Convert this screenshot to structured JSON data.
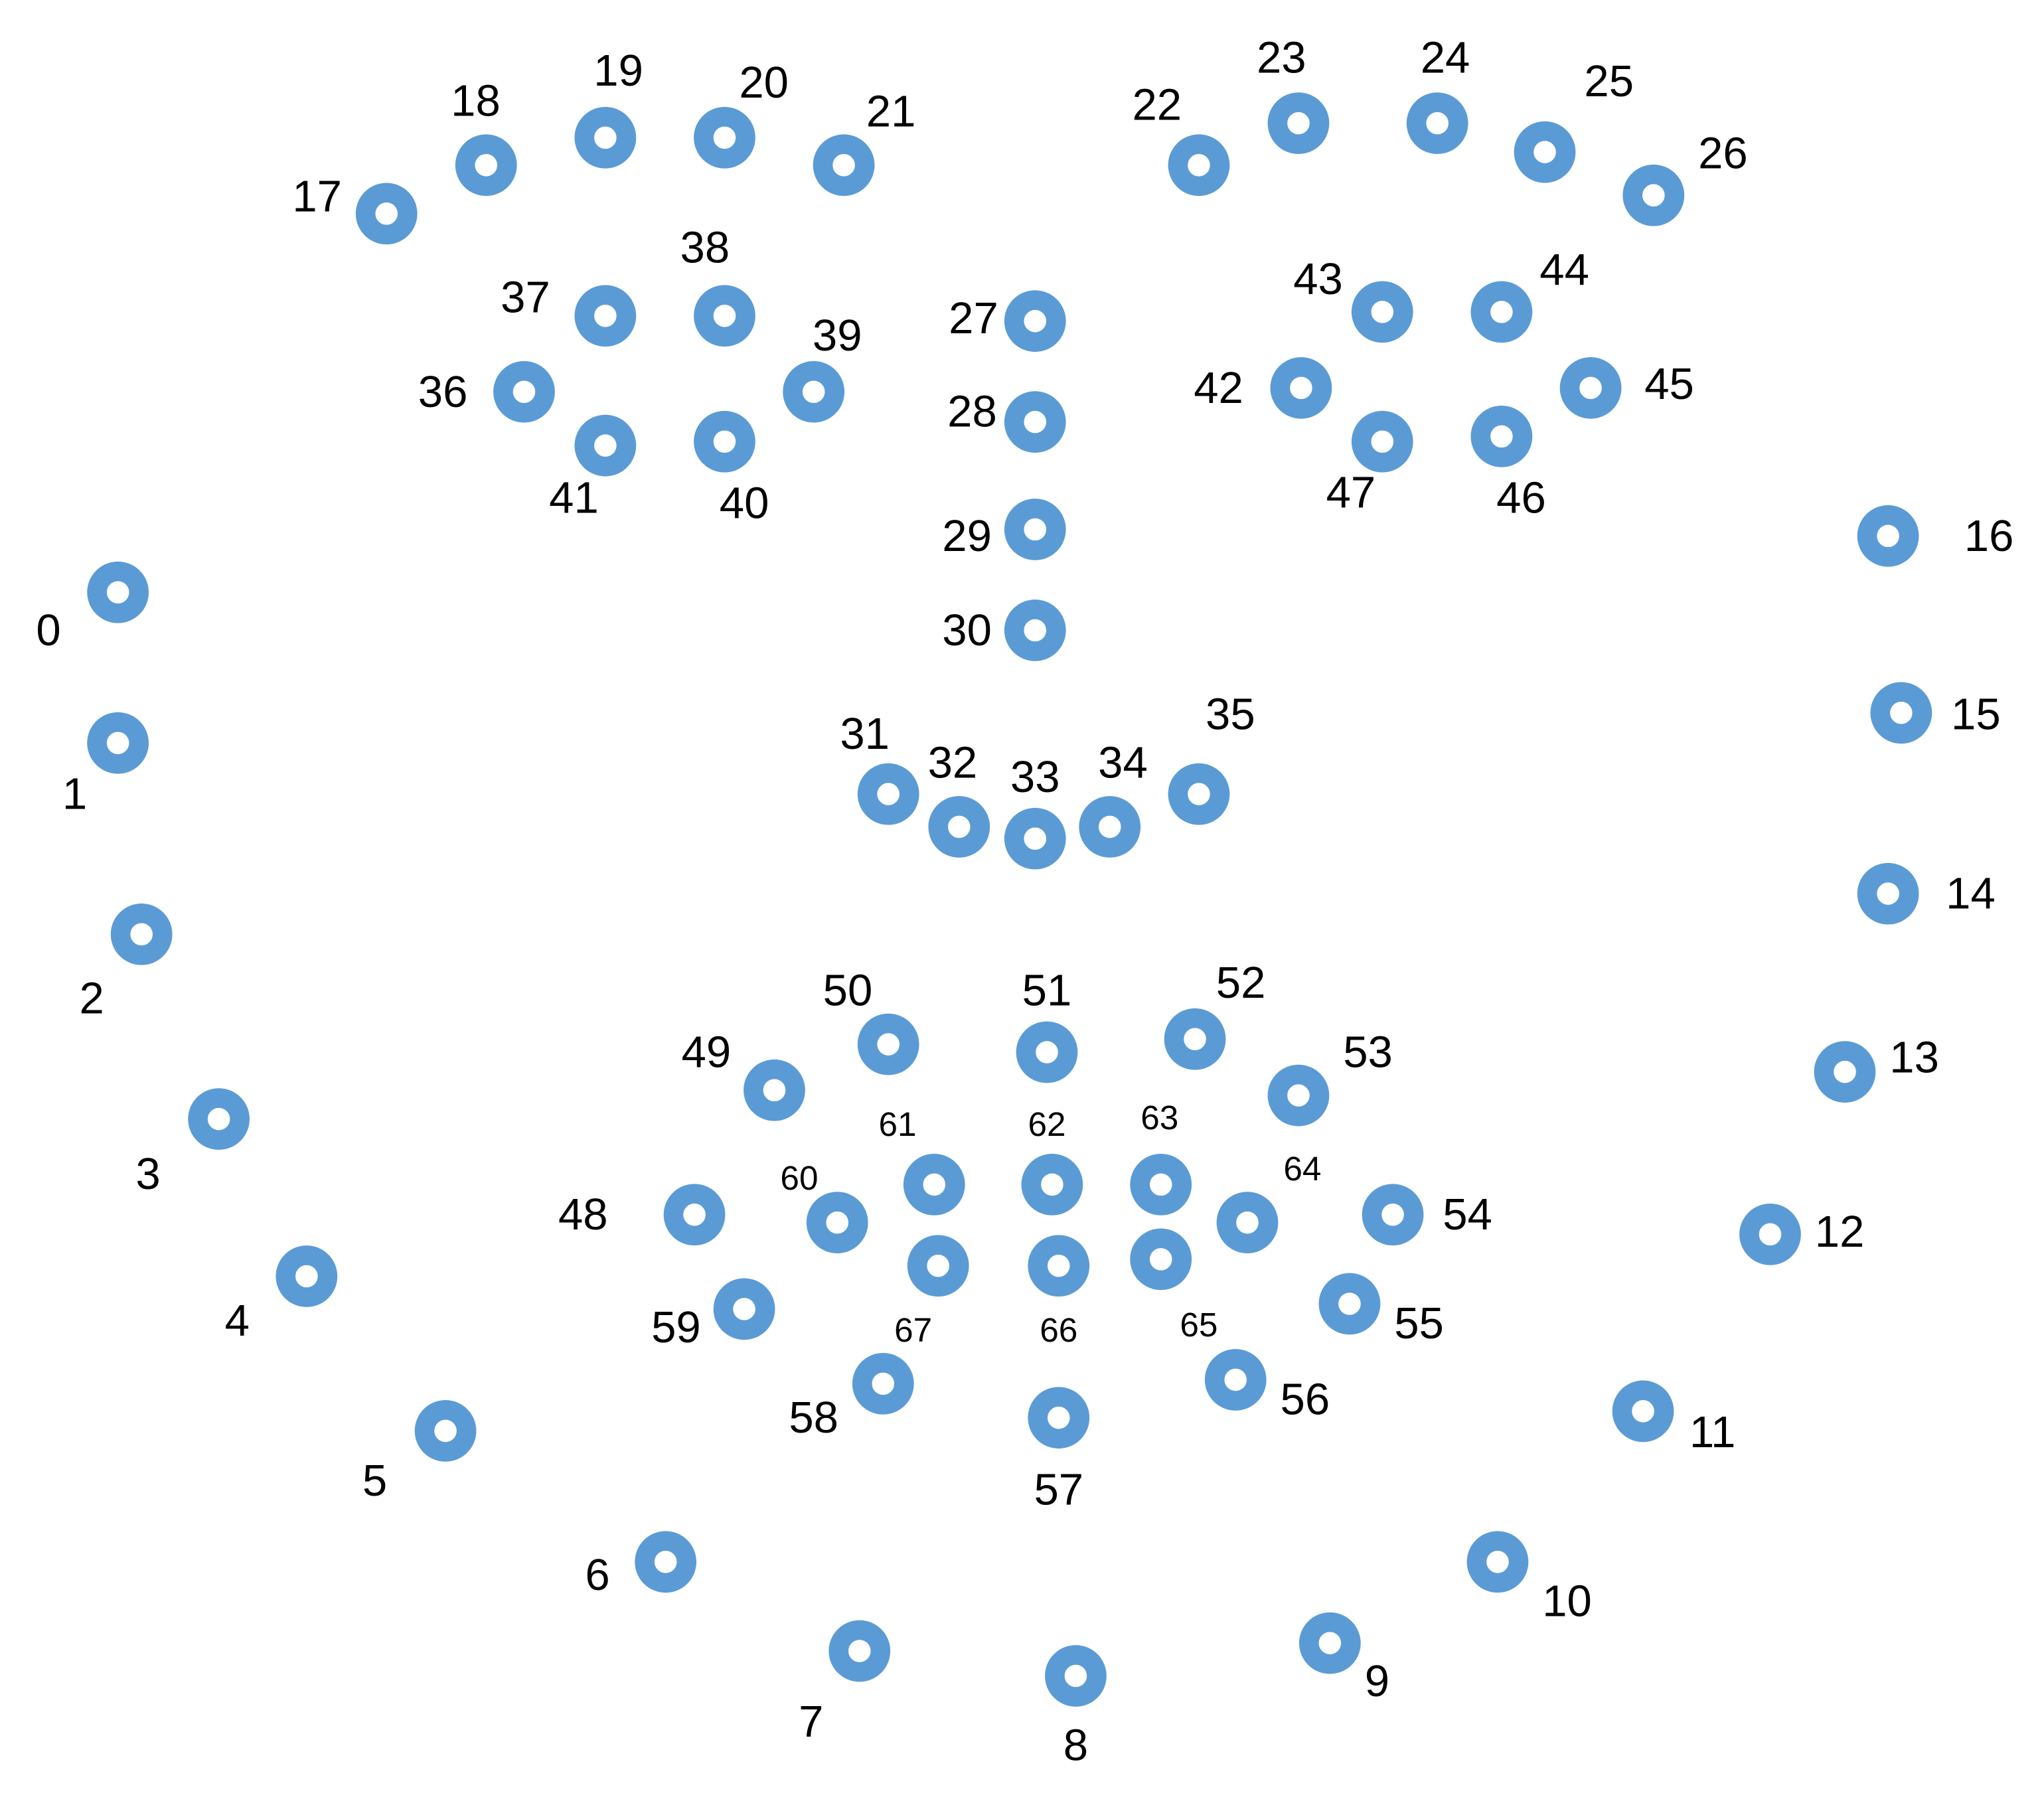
{
  "diagram": {
    "point_color": "#5B9BD5",
    "icon": "ring-marker",
    "labels": [
      "0",
      "1",
      "2",
      "3",
      "4",
      "5",
      "6",
      "7",
      "8",
      "9",
      "10",
      "11",
      "12",
      "13",
      "14",
      "15",
      "16",
      "17",
      "18",
      "19",
      "20",
      "21",
      "22",
      "23",
      "24",
      "25",
      "26",
      "27",
      "28",
      "29",
      "30",
      "31",
      "32",
      "33",
      "34",
      "35",
      "36",
      "37",
      "38",
      "39",
      "40",
      "41",
      "42",
      "43",
      "44",
      "45",
      "46",
      "47",
      "48",
      "49",
      "50",
      "51",
      "52",
      "53",
      "54",
      "55",
      "56",
      "57",
      "58",
      "59",
      "60",
      "61",
      "62",
      "63",
      "64",
      "65",
      "66",
      "67"
    ]
  }
}
